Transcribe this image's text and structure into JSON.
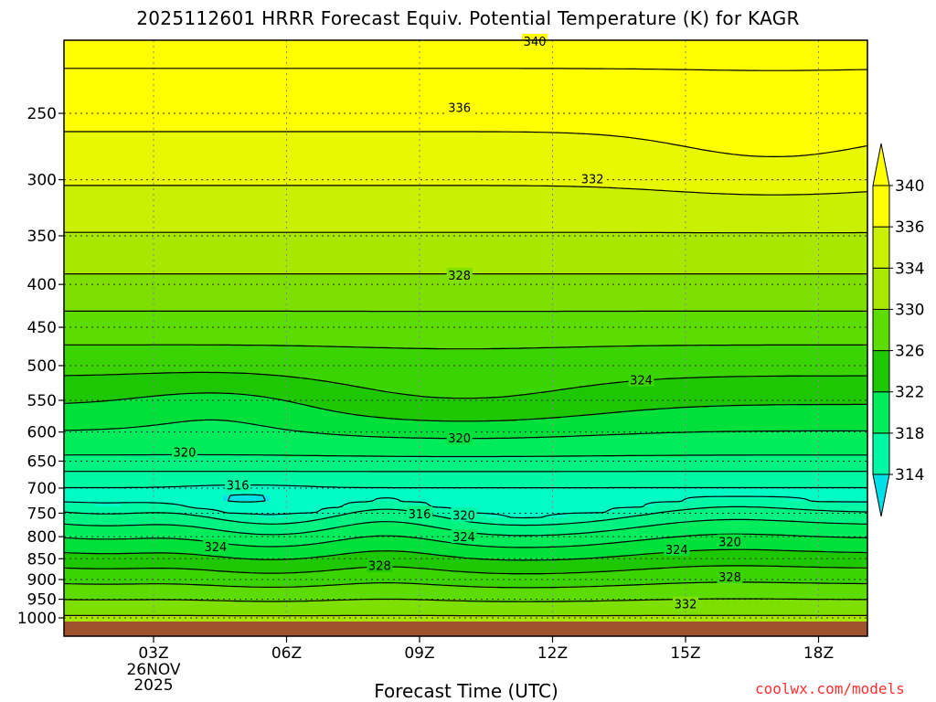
{
  "chart_data": {
    "type": "heatmap",
    "title": "2025112601 HRRR Forecast Equiv. Potential Temperature (K) for KAGR",
    "xlabel": "Forecast Time (UTC)",
    "ylabel": "",
    "x_ticks": [
      {
        "hour": 3,
        "label": "03Z",
        "sub": [
          "26NOV",
          "2025"
        ]
      },
      {
        "hour": 6,
        "label": "06Z",
        "sub": []
      },
      {
        "hour": 9,
        "label": "09Z",
        "sub": []
      },
      {
        "hour": 12,
        "label": "12Z",
        "sub": []
      },
      {
        "hour": 15,
        "label": "15Z",
        "sub": []
      },
      {
        "hour": 18,
        "label": "18Z",
        "sub": []
      }
    ],
    "xlim": [
      1,
      19
    ],
    "y_ticks": [
      250,
      300,
      350,
      400,
      450,
      500,
      550,
      600,
      650,
      700,
      750,
      800,
      850,
      900,
      950,
      1000
    ],
    "ylim": [
      1025,
      200
    ],
    "colorbar": {
      "levels": [
        314,
        318,
        322,
        326,
        330,
        334,
        336,
        340
      ],
      "labels": [
        "340",
        "336",
        "334",
        "330",
        "326",
        "322",
        "318",
        "314"
      ],
      "bands": [
        {
          "min": 338,
          "color": "#ffff00"
        },
        {
          "min": 336,
          "color": "#e8f800"
        },
        {
          "min": 334,
          "color": "#c8f000"
        },
        {
          "min": 332,
          "color": "#a8e800"
        },
        {
          "min": 330,
          "color": "#7ee000"
        },
        {
          "min": 328,
          "color": "#5cdc00"
        },
        {
          "min": 326,
          "color": "#3ad400"
        },
        {
          "min": 324,
          "color": "#1ec800"
        },
        {
          "min": 322,
          "color": "#00e03a"
        },
        {
          "min": 320,
          "color": "#00ec5a"
        },
        {
          "min": 318,
          "color": "#00f280"
        },
        {
          "min": 316,
          "color": "#00f8a4"
        },
        {
          "min": 314,
          "color": "#00fcc4"
        },
        {
          "min": 0,
          "color": "#00e0e8"
        }
      ],
      "under_color": "#00e0e8",
      "over_color": "#ffff00"
    },
    "ground_color": "#a0522d",
    "ground_pressure": 1010,
    "contour_labels": [
      {
        "value": 340,
        "hour": 11.6,
        "p": 205
      },
      {
        "value": 336,
        "hour": 9.9,
        "p": 246
      },
      {
        "value": 332,
        "hour": 12.9,
        "p": 299
      },
      {
        "value": 328,
        "hour": 9.9,
        "p": 390
      },
      {
        "value": 324,
        "hour": 14.0,
        "p": 520
      },
      {
        "value": 320,
        "hour": 9.9,
        "p": 610
      },
      {
        "value": 320,
        "hour": 3.7,
        "p": 634
      },
      {
        "value": 316,
        "hour": 4.9,
        "p": 694
      },
      {
        "value": 316,
        "hour": 9.0,
        "p": 751
      },
      {
        "value": 320,
        "hour": 10.0,
        "p": 754
      },
      {
        "value": 324,
        "hour": 10.0,
        "p": 800
      },
      {
        "value": 324,
        "hour": 4.4,
        "p": 822
      },
      {
        "value": 328,
        "hour": 8.1,
        "p": 866
      },
      {
        "value": 320,
        "hour": 16.0,
        "p": 811
      },
      {
        "value": 324,
        "hour": 14.8,
        "p": 828
      },
      {
        "value": 328,
        "hour": 16.0,
        "p": 893
      },
      {
        "value": 332,
        "hour": 15.0,
        "p": 962
      }
    ],
    "grid": true,
    "legend": "colorbar-right"
  },
  "credit": "coolwx.com/models"
}
